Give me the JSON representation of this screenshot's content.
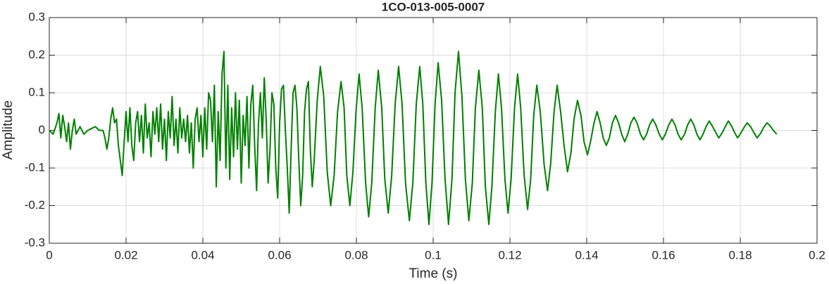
{
  "chart_data": {
    "type": "line",
    "title": "1CO-013-005-0007",
    "x_label": "Time (s)",
    "y_label": "Amplitude",
    "xlim": [
      0,
      0.2
    ],
    "ylim": [
      -0.3,
      0.3
    ],
    "xticks": [
      0,
      0.02,
      0.04,
      0.06,
      0.08,
      0.1,
      0.12,
      0.14,
      0.16,
      0.18,
      0.2
    ],
    "yticks": [
      -0.3,
      -0.2,
      -0.1,
      0,
      0.1,
      0.2,
      0.3
    ],
    "grid": true,
    "x": [
      0,
      0.001,
      0.002,
      0.0025,
      0.003,
      0.0035,
      0.004,
      0.0045,
      0.005,
      0.0055,
      0.006,
      0.0065,
      0.007,
      0.008,
      0.009,
      0.01,
      0.011,
      0.012,
      0.013,
      0.014,
      0.0145,
      0.015,
      0.0155,
      0.016,
      0.0165,
      0.017,
      0.0175,
      0.018,
      0.0185,
      0.019,
      0.0195,
      0.02,
      0.0205,
      0.021,
      0.0215,
      0.022,
      0.0225,
      0.023,
      0.0235,
      0.024,
      0.0245,
      0.025,
      0.0255,
      0.026,
      0.0265,
      0.027,
      0.0275,
      0.028,
      0.0285,
      0.029,
      0.0295,
      0.03,
      0.0305,
      0.031,
      0.0315,
      0.032,
      0.0325,
      0.033,
      0.0335,
      0.034,
      0.0345,
      0.035,
      0.0355,
      0.036,
      0.0365,
      0.037,
      0.0375,
      0.038,
      0.0385,
      0.039,
      0.0395,
      0.04,
      0.0405,
      0.041,
      0.0415,
      0.042,
      0.0425,
      0.043,
      0.0435,
      0.044,
      0.0445,
      0.045,
      0.0455,
      0.046,
      0.0465,
      0.047,
      0.0475,
      0.048,
      0.0485,
      0.049,
      0.0495,
      0.05,
      0.0505,
      0.051,
      0.0515,
      0.052,
      0.0525,
      0.053,
      0.0535,
      0.054,
      0.0545,
      0.055,
      0.0555,
      0.056,
      0.0565,
      0.057,
      0.0575,
      0.058,
      0.0585,
      0.059,
      0.0595,
      0.06,
      0.0605,
      0.061,
      0.0615,
      0.062,
      0.0625,
      0.063,
      0.0635,
      0.064,
      0.0645,
      0.065,
      0.0655,
      0.066,
      0.0665,
      0.067,
      0.0675,
      0.068,
      0.0685,
      0.069,
      0.0698,
      0.0706,
      0.0715,
      0.0724,
      0.0733,
      0.0742,
      0.0751,
      0.076,
      0.0768,
      0.0775,
      0.0783,
      0.0791,
      0.0799,
      0.0807,
      0.0815,
      0.0824,
      0.0832,
      0.084,
      0.0849,
      0.0857,
      0.0866,
      0.0874,
      0.0883,
      0.0892,
      0.0901,
      0.091,
      0.0919,
      0.0928,
      0.0938,
      0.0947,
      0.0956,
      0.0965,
      0.0973,
      0.0981,
      0.0989,
      0.0997,
      0.1005,
      0.1013,
      0.1022,
      0.1031,
      0.104,
      0.1049,
      0.1057,
      0.1066,
      0.1075,
      0.1084,
      0.1093,
      0.1102,
      0.111,
      0.1119,
      0.1128,
      0.1136,
      0.1145,
      0.1153,
      0.1162,
      0.117,
      0.1178,
      0.1187,
      0.1195,
      0.1203,
      0.1212,
      0.122,
      0.1228,
      0.1237,
      0.1246,
      0.1254,
      0.1262,
      0.127,
      0.1279,
      0.1289,
      0.1298,
      0.1306,
      0.1315,
      0.1323,
      0.1332,
      0.1341,
      0.135,
      0.1359,
      0.1367,
      0.1376,
      0.1385,
      0.1393,
      0.1402,
      0.141,
      0.1419,
      0.1427,
      0.1435,
      0.1443,
      0.1451,
      0.1459,
      0.1467,
      0.1475,
      0.1483,
      0.1491,
      0.1499,
      0.1507,
      0.1515,
      0.1523,
      0.1531,
      0.154,
      0.1548,
      0.1556,
      0.1564,
      0.1572,
      0.158,
      0.1589,
      0.1597,
      0.1605,
      0.1614,
      0.1622,
      0.163,
      0.1638,
      0.1646,
      0.1655,
      0.1663,
      0.1671,
      0.1679,
      0.1687,
      0.1695,
      0.1703,
      0.1711,
      0.1719,
      0.1727,
      0.1736,
      0.1744,
      0.1752,
      0.1761,
      0.1769,
      0.1777,
      0.1785,
      0.1793,
      0.1801,
      0.181,
      0.1818,
      0.1827,
      0.1835,
      0.1844,
      0.1853,
      0.1861,
      0.187,
      0.1878,
      0.1886,
      0.1895
    ],
    "series": [
      {
        "color": "#008000",
        "values": [
          0,
          -0.01,
          0.02,
          0.045,
          -0.02,
          0.04,
          0.01,
          -0.03,
          0.02,
          -0.05,
          0,
          0.03,
          -0.01,
          0.01,
          -0.01,
          0,
          0.005,
          0.01,
          0,
          0,
          -0.02,
          -0.05,
          -0.02,
          0.03,
          0.06,
          0.02,
          0.03,
          -0.04,
          -0.08,
          -0.12,
          -0.03,
          0.05,
          -0.03,
          0.06,
          -0.04,
          -0.08,
          0.02,
          0.05,
          -0.03,
          0.04,
          -0.06,
          0.07,
          -0.02,
          0.02,
          -0.07,
          0.05,
          -0.01,
          0.06,
          -0.03,
          0.07,
          -0.05,
          0.03,
          -0.08,
          0.05,
          -0.02,
          0.09,
          -0.04,
          0.03,
          -0.06,
          0.06,
          -0.02,
          0.03,
          -0.03,
          0.04,
          -0.06,
          0.02,
          -0.1,
          0.03,
          0.06,
          -0.03,
          0.04,
          -0.07,
          0.06,
          -0.05,
          0.1,
          0.08,
          -0.03,
          0.12,
          -0.15,
          0.05,
          -0.08,
          0.15,
          0.21,
          -0.1,
          0.12,
          -0.13,
          0.06,
          -0.07,
          0.1,
          -0.05,
          0.08,
          -0.14,
          0.04,
          -0.04,
          0.09,
          -0.1,
          0.07,
          0.12,
          -0.04,
          -0.16,
          0.02,
          0.1,
          -0.02,
          0.14,
          0.03,
          -0.14,
          -0.05,
          0.1,
          0.07,
          -0.1,
          -0.18,
          0.02,
          0.11,
          0.12,
          0,
          -0.1,
          -0.22,
          -0.05,
          0.1,
          0.12,
          0.06,
          -0.08,
          -0.2,
          -0.12,
          0.05,
          0.11,
          0.13,
          -0.05,
          -0.15,
          -0.08,
          0.08,
          0.17,
          0.09,
          -0.11,
          -0.2,
          -0.12,
          0.05,
          0.13,
          0.06,
          -0.12,
          -0.2,
          -0.11,
          0.05,
          0.15,
          0.06,
          -0.14,
          -0.23,
          -0.14,
          0.06,
          0.16,
          0.06,
          -0.13,
          -0.22,
          -0.12,
          0.07,
          0.17,
          0.07,
          -0.14,
          -0.24,
          -0.14,
          0.07,
          0.17,
          0.07,
          -0.14,
          -0.25,
          -0.14,
          0.07,
          0.18,
          0.08,
          -0.13,
          -0.25,
          -0.13,
          0.1,
          0.21,
          0.09,
          -0.13,
          -0.24,
          -0.14,
          0.06,
          0.16,
          0.06,
          -0.15,
          -0.25,
          -0.15,
          0.05,
          0.15,
          0.06,
          -0.13,
          -0.22,
          -0.13,
          0.06,
          0.15,
          0.06,
          -0.12,
          -0.21,
          -0.13,
          0.04,
          0.12,
          0.05,
          -0.09,
          -0.16,
          -0.09,
          0.05,
          0.12,
          0.05,
          -0.04,
          -0.11,
          -0.06,
          0.03,
          0.08,
          0.04,
          -0.03,
          -0.065,
          -0.03,
          0.02,
          0.05,
          0.02,
          -0.02,
          -0.04,
          -0.02,
          0.02,
          0.04,
          0.02,
          -0.01,
          -0.03,
          -0.01,
          0.02,
          0.035,
          0.02,
          -0.01,
          -0.025,
          -0.01,
          0.015,
          0.03,
          0.015,
          -0.01,
          -0.025,
          -0.01,
          0.015,
          0.03,
          0.015,
          -0.01,
          -0.025,
          -0.01,
          0.015,
          0.03,
          0.015,
          -0.01,
          -0.025,
          -0.01,
          0.01,
          0.025,
          0.012,
          -0.005,
          -0.02,
          -0.008,
          0.01,
          0.025,
          0.012,
          -0.005,
          -0.02,
          -0.008,
          0.008,
          0.02,
          0.01,
          -0.005,
          -0.02,
          -0.008,
          0.008,
          0.02,
          0.012,
          0,
          -0.01
        ]
      }
    ]
  }
}
